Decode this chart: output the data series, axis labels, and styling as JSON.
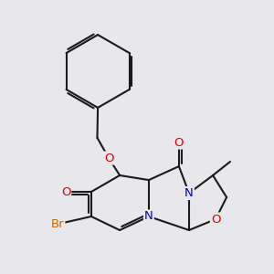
{
  "bg_color": "#e8e8ec",
  "line_color": "#1a1a1a",
  "bond_width": 1.5,
  "dbo_inner": 0.06,
  "atom_colors": {
    "O": "#dd0000",
    "N": "#0000cc",
    "Br": "#cc6600",
    "C": "#1a1a1a"
  },
  "font_size": 9.5
}
